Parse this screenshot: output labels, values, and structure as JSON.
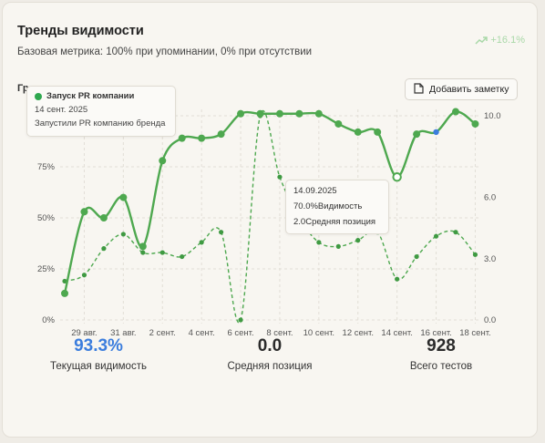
{
  "header": {
    "title": "Тренды видимости",
    "subtitle": "Базовая метрика: 100% при упоминании, 0% при отсутствии",
    "trend": "+16.1%",
    "cut_label": "Гр",
    "add_note_label": "Добавить заметку"
  },
  "tooltip_event": {
    "title": "Запуск PR компании",
    "date": "14 сент. 2025",
    "description": "Запустили PR компанию бренда"
  },
  "tooltip_point": {
    "date": "14.09.2025",
    "visibility_text": "70.0%Видимость",
    "position_text": "2.0Средняя позиция"
  },
  "stats": [
    {
      "value": "93.3%",
      "label": "Текущая видимость"
    },
    {
      "value": "0.0",
      "label": "Средняя позиция"
    },
    {
      "value": "928",
      "label": "Всего тестов"
    }
  ],
  "colors": {
    "line": "#4ea84f",
    "accent_blue": "#3b7ddd",
    "grid": "#e2ded6",
    "axis_text": "#555555",
    "trend_green": "#a9d8a8"
  },
  "chart_data": {
    "type": "line",
    "x_ticks": [
      "29 авг.",
      "31 авг.",
      "2 сент.",
      "4 сент.",
      "6 сент.",
      "8 сент.",
      "10 сент.",
      "12 сент.",
      "14 сент.",
      "16 сент.",
      "18 сент."
    ],
    "y_left_ticks": [
      "0%",
      "25%",
      "50%",
      "75%"
    ],
    "y_left_range": [
      0,
      100
    ],
    "y_right_ticks": [
      "0.0",
      "3.0",
      "6.0",
      "10.0"
    ],
    "y_right_range": [
      0,
      10
    ],
    "grid": true,
    "series": [
      {
        "name": "",
        "axis": "left",
        "style": "solid",
        "x": [
          "28 авг.",
          "29 авг.",
          "30 авг.",
          "31 авг.",
          "1 сент.",
          "2 сент.",
          "3 сент.",
          "4 сент.",
          "5 сент.",
          "6 сент.",
          "7 сент.",
          "8 сент.",
          "9 сент.",
          "10 сент.",
          "11 сент.",
          "12 сент.",
          "13 сент.",
          "14 сент.",
          "15 сент.",
          "16 сент.",
          "17 сент.",
          "18 сент."
        ],
        "values": [
          13,
          53,
          50,
          60,
          36,
          78,
          89,
          89,
          91,
          101,
          101,
          101,
          101,
          101,
          96,
          92,
          92,
          70,
          91,
          92,
          102,
          96
        ]
      },
      {
        "name": "",
        "axis": "right",
        "style": "dashed",
        "x": [
          "28 авг.",
          "29 авг.",
          "30 авг.",
          "31 авг.",
          "1 сент.",
          "2 сент.",
          "3 сент.",
          "4 сент.",
          "5 сент.",
          "6 сент.",
          "7 сент.",
          "8 сент.",
          "9 сент.",
          "10 сент.",
          "11 сент.",
          "12 сент.",
          "13 сент.",
          "14 сент.",
          "15 сент.",
          "16 сент.",
          "17 сент.",
          "18 сент."
        ],
        "values": [
          1.9,
          2.2,
          3.5,
          4.2,
          3.3,
          3.3,
          3.1,
          3.8,
          4.3,
          0.0,
          10.0,
          7.0,
          5.0,
          3.8,
          3.6,
          3.9,
          4.3,
          2.0,
          3.1,
          4.1,
          4.3,
          3.2
        ]
      }
    ]
  }
}
